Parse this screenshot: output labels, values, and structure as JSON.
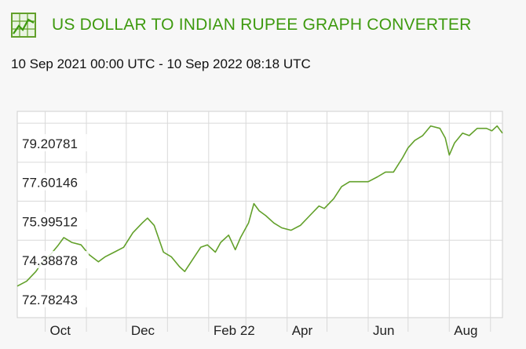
{
  "header": {
    "icon": "line-chart-icon",
    "title": "US DOLLAR TO INDIAN RUPEE GRAPH CONVERTER"
  },
  "subtitle": "10 Sep 2021 00:00 UTC - 10 Sep 2022 08:18 UTC",
  "colors": {
    "line": "#62a02a",
    "title": "#3e9a0f",
    "grid": "#d9d9d9",
    "background": "#ffffff"
  },
  "chart_data": {
    "type": "line",
    "title": "US DOLLAR TO INDIAN RUPEE GRAPH CONVERTER",
    "xlabel": "",
    "ylabel": "",
    "ylim": [
      72.0,
      80.5
    ],
    "grid": true,
    "y_ticks": [
      "79.20781",
      "77.60146",
      "75.99512",
      "74.38878",
      "72.78243"
    ],
    "y_tick_values": [
      79.20781,
      77.60146,
      75.99512,
      74.38878,
      72.78243
    ],
    "x_ticks": [
      "Oct",
      "Dec",
      "Feb 22",
      "Apr",
      "Jun",
      "Aug"
    ],
    "x_tick_dates": [
      "2021-10-01",
      "2021-12-01",
      "2022-02-01",
      "2022-04-01",
      "2022-06-01",
      "2022-08-01"
    ],
    "x_range": [
      "2021-09-10",
      "2022-09-10"
    ],
    "series": [
      {
        "values": [
          [
            "2021-09-10",
            73.3
          ],
          [
            "2021-09-17",
            73.5
          ],
          [
            "2021-09-24",
            73.9
          ],
          [
            "2021-09-29",
            74.3
          ],
          [
            "2021-10-05",
            74.6
          ],
          [
            "2021-10-11",
            75.0
          ],
          [
            "2021-10-15",
            75.3
          ],
          [
            "2021-10-21",
            75.1
          ],
          [
            "2021-10-28",
            75.0
          ],
          [
            "2021-11-03",
            74.6
          ],
          [
            "2021-11-10",
            74.3
          ],
          [
            "2021-11-15",
            74.5
          ],
          [
            "2021-11-22",
            74.7
          ],
          [
            "2021-11-29",
            74.9
          ],
          [
            "2021-12-06",
            75.5
          ],
          [
            "2021-12-13",
            75.9
          ],
          [
            "2021-12-17",
            76.1
          ],
          [
            "2021-12-22",
            75.8
          ],
          [
            "2021-12-29",
            74.7
          ],
          [
            "2022-01-04",
            74.5
          ],
          [
            "2022-01-10",
            74.1
          ],
          [
            "2022-01-14",
            73.9
          ],
          [
            "2022-01-20",
            74.4
          ],
          [
            "2022-01-26",
            74.9
          ],
          [
            "2022-01-31",
            75.0
          ],
          [
            "2022-02-06",
            74.7
          ],
          [
            "2022-02-10",
            75.1
          ],
          [
            "2022-02-16",
            75.4
          ],
          [
            "2022-02-21",
            74.8
          ],
          [
            "2022-02-25",
            75.3
          ],
          [
            "2022-03-03",
            75.9
          ],
          [
            "2022-03-07",
            76.7
          ],
          [
            "2022-03-11",
            76.4
          ],
          [
            "2022-03-16",
            76.2
          ],
          [
            "2022-03-22",
            75.9
          ],
          [
            "2022-03-28",
            75.7
          ],
          [
            "2022-04-04",
            75.6
          ],
          [
            "2022-04-11",
            75.8
          ],
          [
            "2022-04-18",
            76.2
          ],
          [
            "2022-04-25",
            76.6
          ],
          [
            "2022-04-29",
            76.5
          ],
          [
            "2022-05-06",
            76.9
          ],
          [
            "2022-05-12",
            77.4
          ],
          [
            "2022-05-18",
            77.6
          ],
          [
            "2022-05-25",
            77.6
          ],
          [
            "2022-06-01",
            77.6
          ],
          [
            "2022-06-08",
            77.8
          ],
          [
            "2022-06-14",
            78.0
          ],
          [
            "2022-06-20",
            78.0
          ],
          [
            "2022-06-27",
            78.6
          ],
          [
            "2022-07-01",
            79.0
          ],
          [
            "2022-07-06",
            79.3
          ],
          [
            "2022-07-12",
            79.5
          ],
          [
            "2022-07-18",
            79.9
          ],
          [
            "2022-07-25",
            79.8
          ],
          [
            "2022-07-29",
            79.4
          ],
          [
            "2022-08-01",
            78.7
          ],
          [
            "2022-08-05",
            79.2
          ],
          [
            "2022-08-11",
            79.6
          ],
          [
            "2022-08-16",
            79.5
          ],
          [
            "2022-08-22",
            79.8
          ],
          [
            "2022-08-29",
            79.8
          ],
          [
            "2022-09-02",
            79.7
          ],
          [
            "2022-09-06",
            79.9
          ],
          [
            "2022-09-10",
            79.6
          ]
        ]
      }
    ]
  }
}
